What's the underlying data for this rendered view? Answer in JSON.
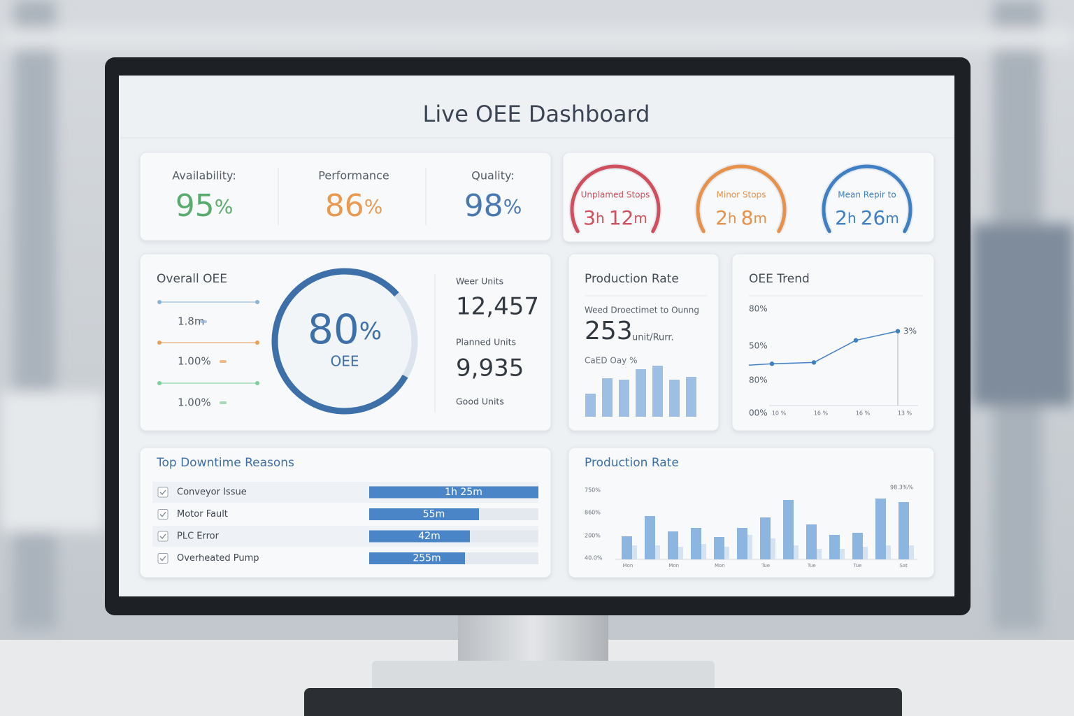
{
  "header": {
    "title": "Live OEE Dashboard"
  },
  "kpis": [
    {
      "label": "Availability:",
      "value": 95,
      "unit": "%",
      "color": "#5aac6e"
    },
    {
      "label": "Performance",
      "value": 86,
      "unit": "%",
      "color": "#e89a52"
    },
    {
      "label": "Quality:",
      "value": 98,
      "unit": "%",
      "color": "#4a78b0"
    }
  ],
  "gauges": [
    {
      "label": "Unplamed Stops",
      "hours": 3,
      "h": "h",
      "minutes": 12,
      "m": "m",
      "color": "#cf4f5c"
    },
    {
      "label": "Minor Stops",
      "hours": 2,
      "h": "h",
      "minutes": 8,
      "m": "m",
      "color": "#e8914a"
    },
    {
      "label": "Mean Repir to",
      "hours": 2,
      "h": "h",
      "minutes": 26,
      "m": "m",
      "color": "#3f7fc4"
    }
  ],
  "overall": {
    "title": "Overall OEE",
    "side": [
      "1.8m",
      "1.00%",
      "1.00%"
    ],
    "value": 80,
    "unit": "%",
    "label": "OEE",
    "color": "#3d6fa8"
  },
  "units": [
    {
      "label": "Weer Units",
      "value": "12,457"
    },
    {
      "label": "Planned Units",
      "value": "9,935"
    },
    {
      "label": "Good Units"
    }
  ],
  "production_rate": {
    "title": "Production Rate",
    "subtitle": "Weed Droectimet to Ounng",
    "value": 253,
    "unit": "unit/Rurr.",
    "caption": "CaED Oay %",
    "bars": [
      33,
      55,
      53,
      68,
      73,
      53,
      57
    ],
    "color": "#9dbfe3"
  },
  "oee_trend": {
    "title": "OEE Trend",
    "y_labels": [
      "80%",
      "50%",
      "80%",
      "00%"
    ],
    "x_labels": [
      "10 %",
      "16 %",
      "16 %",
      "13 %"
    ],
    "values": [
      38,
      39,
      56,
      63
    ],
    "point_label": "3%",
    "color": "#3f7fc4"
  },
  "downtime": {
    "title": "Top Downtime Reasons",
    "rows": [
      {
        "label": "Conveyor Issue",
        "value": "1h 25m"
      },
      {
        "label": "Motor Fault",
        "value": "55m"
      },
      {
        "label": "PLC Error",
        "value": "42m"
      },
      {
        "label": "Overheated Pump",
        "value": "255m"
      }
    ]
  },
  "production_chart": {
    "title": "Production Rate",
    "y_labels": [
      "750%",
      "860%",
      "200%",
      "40.0%"
    ],
    "corner_label": "98.3%%",
    "x_labels": [
      "Mon",
      "Mon",
      "Mon",
      "Tue",
      "Tue",
      "Tue",
      "Sat"
    ],
    "series": [
      {
        "color": "#d4e2f1",
        "values": [
          20,
          20,
          18,
          22,
          18,
          35,
          30,
          20,
          15,
          15,
          18,
          20,
          20
        ]
      },
      {
        "color": "#8cb5e0",
        "values": [
          33,
          62,
          40,
          45,
          32,
          45,
          60,
          85,
          50,
          35,
          38,
          87,
          82
        ]
      }
    ]
  }
}
